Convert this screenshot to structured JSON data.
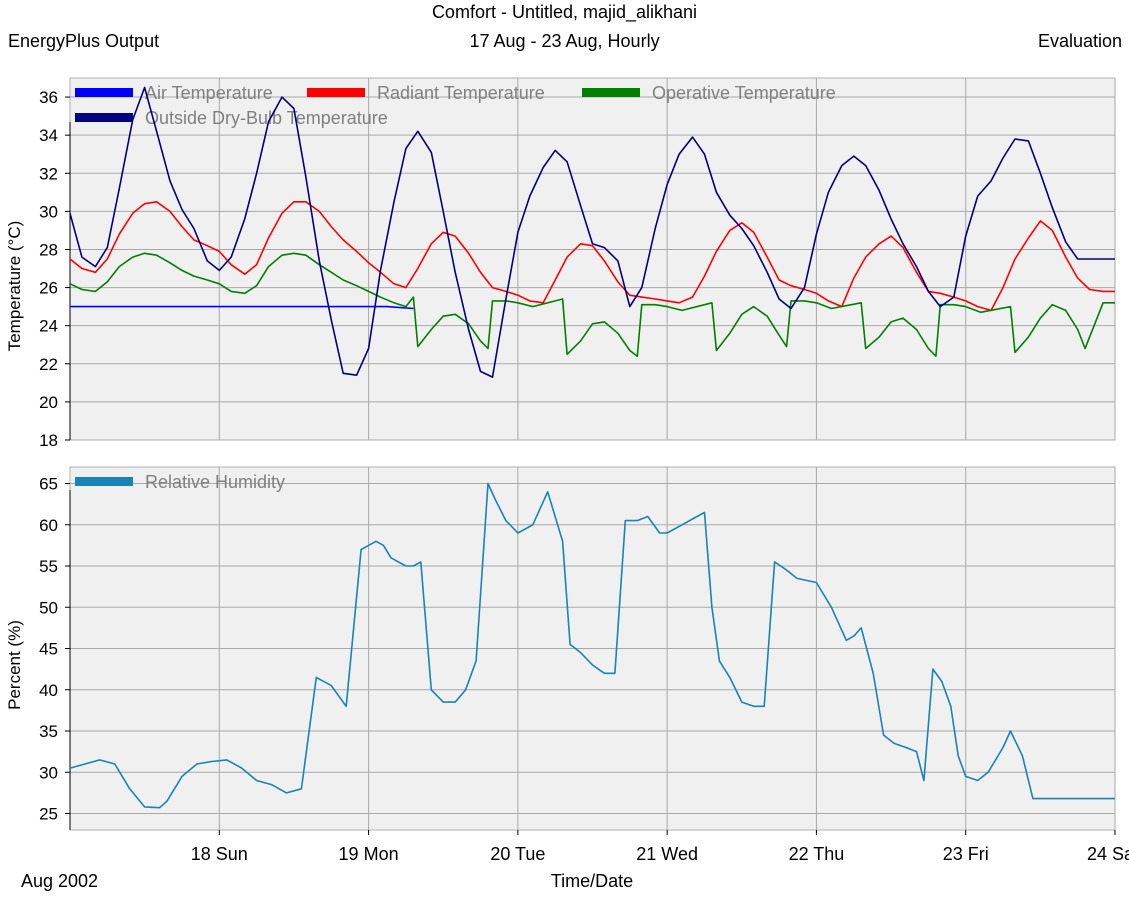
{
  "header": {
    "title": "Comfort - Untitled, majid_alikhani",
    "left": "EnergyPlus Output",
    "center": "17 Aug - 23 Aug, Hourly",
    "right": "Evaluation"
  },
  "footer": {
    "date_label": "Aug 2002",
    "xlabel": "Time/Date"
  },
  "chart_data": [
    {
      "type": "line",
      "ylabel": "Temperature (°C)",
      "ylim": [
        18,
        37
      ],
      "yticks": [
        18,
        20,
        22,
        24,
        26,
        28,
        30,
        32,
        34,
        36
      ],
      "xlim": [
        17,
        24
      ],
      "x_tick_labels": [
        {
          "x": 18,
          "label": "18 Sun"
        },
        {
          "x": 19,
          "label": "19 Mon"
        },
        {
          "x": 20,
          "label": "20 Tue"
        },
        {
          "x": 21,
          "label": "21 Wed"
        },
        {
          "x": 22,
          "label": "22 Thu"
        },
        {
          "x": 23,
          "label": "23 Fri"
        },
        {
          "x": 24,
          "label": "24 Sa"
        }
      ],
      "grid": true,
      "legend_position": "top",
      "series": [
        {
          "name": "Air Temperature",
          "color": "#0000ff",
          "x": [
            17.0,
            19.12,
            19.3
          ],
          "y": [
            25.0,
            25.0,
            24.9
          ]
        },
        {
          "name": "Radiant Temperature",
          "color": "#ff0000",
          "x": [
            17.0,
            17.08,
            17.17,
            17.25,
            17.33,
            17.42,
            17.5,
            17.58,
            17.67,
            17.75,
            17.83,
            17.92,
            18.0,
            18.08,
            18.17,
            18.25,
            18.33,
            18.42,
            18.5,
            18.58,
            18.67,
            18.75,
            18.83,
            18.92,
            19.0,
            19.08,
            19.17,
            19.25,
            19.33,
            19.42,
            19.5,
            19.58,
            19.67,
            19.75,
            19.83,
            19.92,
            20.0,
            20.08,
            20.17,
            20.25,
            20.33,
            20.42,
            20.5,
            20.58,
            20.67,
            20.75,
            20.83,
            20.92,
            21.0,
            21.08,
            21.17,
            21.25,
            21.33,
            21.42,
            21.5,
            21.58,
            21.67,
            21.75,
            21.83,
            21.92,
            22.0,
            22.08,
            22.17,
            22.25,
            22.33,
            22.42,
            22.5,
            22.58,
            22.67,
            22.75,
            22.83,
            22.92,
            23.0,
            23.08,
            23.17,
            23.25,
            23.33,
            23.42,
            23.5,
            23.58,
            23.67,
            23.75,
            23.83,
            23.92,
            24.0
          ],
          "y": [
            27.5,
            27.0,
            26.8,
            27.5,
            28.8,
            29.9,
            30.4,
            30.5,
            30.0,
            29.2,
            28.5,
            28.2,
            27.9,
            27.2,
            26.7,
            27.2,
            28.6,
            29.9,
            30.5,
            30.5,
            30.0,
            29.2,
            28.5,
            27.9,
            27.3,
            26.8,
            26.2,
            26.0,
            27.0,
            28.3,
            28.9,
            28.7,
            27.8,
            26.8,
            26.0,
            25.8,
            25.6,
            25.3,
            25.2,
            26.4,
            27.6,
            28.3,
            28.2,
            27.4,
            26.3,
            25.6,
            25.5,
            25.4,
            25.3,
            25.2,
            25.5,
            26.6,
            27.9,
            29.0,
            29.4,
            28.9,
            27.6,
            26.4,
            26.1,
            25.9,
            25.7,
            25.3,
            25.0,
            26.5,
            27.6,
            28.3,
            28.7,
            28.1,
            26.8,
            25.8,
            25.7,
            25.5,
            25.3,
            25.0,
            24.8,
            26.0,
            27.5,
            28.6,
            29.5,
            29.0,
            27.6,
            26.5,
            25.9,
            25.8,
            25.8
          ]
        },
        {
          "name": "Operative Temperature",
          "color": "#008000",
          "x": [
            17.0,
            17.08,
            17.17,
            17.25,
            17.33,
            17.42,
            17.5,
            17.58,
            17.67,
            17.75,
            17.83,
            17.92,
            18.0,
            18.08,
            18.17,
            18.25,
            18.33,
            18.42,
            18.5,
            18.58,
            18.67,
            18.75,
            18.83,
            18.92,
            19.0,
            19.08,
            19.17,
            19.25,
            19.3,
            19.33,
            19.42,
            19.5,
            19.58,
            19.67,
            19.75,
            19.8,
            19.83,
            19.92,
            20.0,
            20.1,
            20.3,
            20.33,
            20.42,
            20.5,
            20.58,
            20.67,
            20.75,
            20.8,
            20.83,
            20.92,
            21.0,
            21.1,
            21.3,
            21.33,
            21.42,
            21.5,
            21.58,
            21.67,
            21.75,
            21.8,
            21.83,
            21.92,
            22.0,
            22.1,
            22.3,
            22.33,
            22.42,
            22.5,
            22.58,
            22.67,
            22.75,
            22.8,
            22.83,
            22.92,
            23.0,
            23.1,
            23.3,
            23.33,
            23.42,
            23.5,
            23.58,
            23.67,
            23.75,
            23.8,
            23.83,
            23.92,
            24.0
          ],
          "y": [
            26.2,
            25.9,
            25.8,
            26.3,
            27.1,
            27.6,
            27.8,
            27.7,
            27.3,
            26.9,
            26.6,
            26.4,
            26.2,
            25.8,
            25.7,
            26.1,
            27.1,
            27.7,
            27.8,
            27.7,
            27.2,
            26.8,
            26.4,
            26.1,
            25.8,
            25.5,
            25.2,
            25.0,
            25.5,
            22.9,
            23.8,
            24.5,
            24.6,
            24.1,
            23.2,
            22.8,
            25.3,
            25.3,
            25.2,
            25.0,
            25.4,
            22.5,
            23.2,
            24.1,
            24.2,
            23.6,
            22.7,
            22.4,
            25.1,
            25.1,
            25.0,
            24.8,
            25.2,
            22.7,
            23.6,
            24.6,
            25.0,
            24.5,
            23.5,
            22.9,
            25.3,
            25.3,
            25.2,
            24.9,
            25.2,
            22.8,
            23.4,
            24.2,
            24.4,
            23.8,
            22.8,
            22.4,
            25.1,
            25.1,
            25.0,
            24.7,
            25.0,
            22.6,
            23.4,
            24.4,
            25.1,
            24.8,
            23.8,
            22.8,
            23.4,
            25.2,
            25.2
          ]
        },
        {
          "name": "Outside Dry-Bulb Temperature",
          "color": "#000080",
          "x": [
            17.0,
            17.08,
            17.17,
            17.25,
            17.33,
            17.42,
            17.5,
            17.58,
            17.67,
            17.75,
            17.83,
            17.92,
            18.0,
            18.08,
            18.17,
            18.25,
            18.33,
            18.42,
            18.5,
            18.58,
            18.67,
            18.75,
            18.83,
            18.92,
            19.0,
            19.08,
            19.17,
            19.25,
            19.33,
            19.42,
            19.5,
            19.58,
            19.67,
            19.75,
            19.83,
            19.92,
            20.0,
            20.08,
            20.17,
            20.25,
            20.33,
            20.42,
            20.5,
            20.58,
            20.67,
            20.75,
            20.83,
            20.92,
            21.0,
            21.08,
            21.17,
            21.25,
            21.33,
            21.42,
            21.5,
            21.58,
            21.67,
            21.75,
            21.83,
            21.92,
            22.0,
            22.08,
            22.17,
            22.25,
            22.33,
            22.42,
            22.5,
            22.58,
            22.67,
            22.75,
            22.83,
            22.92,
            23.0,
            23.08,
            23.17,
            23.25,
            23.33,
            23.42,
            23.5,
            23.58,
            23.67,
            23.75,
            23.83,
            23.92,
            24.0
          ],
          "y": [
            29.9,
            27.6,
            27.1,
            28.1,
            31.2,
            34.8,
            36.5,
            34.2,
            31.6,
            30.1,
            29.1,
            27.4,
            26.9,
            27.6,
            29.6,
            32.0,
            34.7,
            36.0,
            35.4,
            31.8,
            27.4,
            24.3,
            21.5,
            21.4,
            22.8,
            26.9,
            30.5,
            33.3,
            34.2,
            33.1,
            30.0,
            26.8,
            23.8,
            21.6,
            21.3,
            25.4,
            28.9,
            30.8,
            32.3,
            33.2,
            32.6,
            30.3,
            28.3,
            28.1,
            27.4,
            25.0,
            26.0,
            29.1,
            31.4,
            33.0,
            33.9,
            33.0,
            31.0,
            29.8,
            29.1,
            28.2,
            26.8,
            25.4,
            24.9,
            26.0,
            28.8,
            31.0,
            32.4,
            32.9,
            32.4,
            31.1,
            29.6,
            28.3,
            27.1,
            25.8,
            25.0,
            25.5,
            28.7,
            30.8,
            31.6,
            32.8,
            33.8,
            33.7,
            32.0,
            30.2,
            28.4,
            27.5,
            27.5,
            27.5,
            27.5
          ]
        }
      ]
    },
    {
      "type": "line",
      "ylabel": "Percent (%)",
      "ylim": [
        23,
        67
      ],
      "yticks": [
        25,
        30,
        35,
        40,
        45,
        50,
        55,
        60,
        65
      ],
      "xlim": [
        17,
        24
      ],
      "grid": true,
      "legend_position": "top",
      "series": [
        {
          "name": "Relative Humidity",
          "color": "#1784b5",
          "x": [
            17.0,
            17.1,
            17.2,
            17.3,
            17.4,
            17.5,
            17.6,
            17.65,
            17.75,
            17.85,
            17.95,
            18.05,
            18.15,
            18.25,
            18.35,
            18.45,
            18.55,
            18.65,
            18.75,
            18.85,
            18.95,
            19.0,
            19.05,
            19.1,
            19.15,
            19.2,
            19.25,
            19.3,
            19.35,
            19.42,
            19.5,
            19.58,
            19.65,
            19.72,
            19.8,
            19.85,
            19.92,
            20.0,
            20.1,
            20.2,
            20.3,
            20.35,
            20.42,
            20.5,
            20.58,
            20.65,
            20.72,
            20.8,
            20.87,
            20.95,
            21.0,
            21.1,
            21.2,
            21.25,
            21.3,
            21.35,
            21.42,
            21.5,
            21.58,
            21.65,
            21.72,
            21.8,
            21.87,
            22.0,
            22.1,
            22.2,
            22.25,
            22.3,
            22.38,
            22.45,
            22.52,
            22.6,
            22.67,
            22.72,
            22.78,
            22.84,
            22.9,
            22.95,
            23.0,
            23.08,
            23.15,
            23.2,
            23.25,
            23.3,
            23.38,
            23.45,
            23.5,
            23.55,
            23.62,
            23.7,
            23.78,
            23.84,
            23.9,
            23.95,
            24.0
          ],
          "y": [
            30.5,
            31.0,
            31.5,
            31.0,
            28.0,
            25.8,
            25.7,
            26.5,
            29.5,
            31.0,
            31.3,
            31.5,
            30.5,
            29.0,
            28.5,
            27.5,
            28.0,
            41.5,
            40.5,
            38.0,
            57.0,
            57.5,
            58.0,
            57.5,
            56.0,
            55.5,
            55.0,
            55.0,
            55.5,
            40.0,
            38.5,
            38.5,
            40.0,
            43.5,
            65.0,
            63.0,
            60.5,
            59.0,
            60.0,
            64.0,
            58.0,
            45.5,
            44.5,
            43.0,
            42.0,
            42.0,
            60.5,
            60.5,
            61.0,
            59.0,
            59.0,
            60.0,
            61.0,
            61.5,
            50.0,
            43.5,
            41.5,
            38.5,
            38.0,
            38.0,
            55.5,
            54.5,
            53.5,
            53.0,
            50.0,
            46.0,
            46.5,
            47.5,
            42.0,
            34.5,
            33.5,
            33.0,
            32.5,
            29.0,
            42.5,
            41.0,
            38.0,
            32.0,
            29.5,
            29.0,
            30.0,
            31.5,
            33.0,
            35.0,
            32.0,
            26.8,
            26.8,
            26.8,
            26.8,
            26.8,
            26.8,
            26.8,
            26.8,
            26.8,
            26.8
          ]
        }
      ]
    }
  ]
}
